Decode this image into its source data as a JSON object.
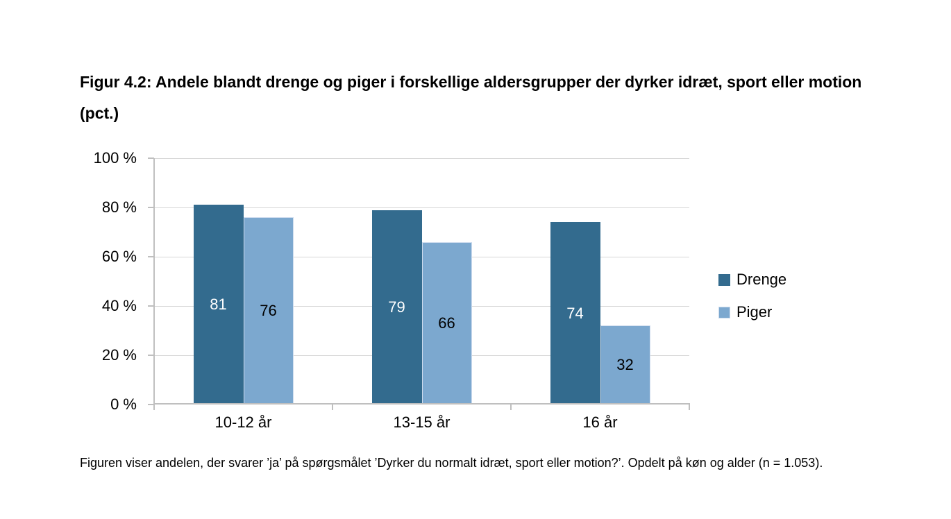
{
  "title": "Figur 4.2: Andele blandt drenge og piger i forskellige aldersgrupper der dyrker idræt, sport eller motion (pct.)",
  "footnote": "Figuren viser andelen, der svarer ’ja’ på spørgsmålet ’Dyrker du normalt idræt, sport eller motion?’. Opdelt på køn og alder (n = 1.053).",
  "colors": {
    "drenge": "#336B8E",
    "piger": "#7CA8CF",
    "piger_border": "#CEDCEE",
    "gridline": "#D6D6D6",
    "axis": "#BFBFBF",
    "text": "#000000"
  },
  "chart_data": {
    "type": "bar",
    "categories": [
      "10-12 år",
      "13-15 år",
      "16 år"
    ],
    "series": [
      {
        "name": "Drenge",
        "values": [
          81,
          79,
          74
        ],
        "color": "#336B8E",
        "label_color": "#FFFFFF"
      },
      {
        "name": "Piger",
        "values": [
          76,
          66,
          32
        ],
        "color": "#7CA8CF",
        "label_color": "#000000",
        "border_color": "#CEDCEE"
      }
    ],
    "title": "Figur 4.2: Andele blandt drenge og piger i forskellige aldersgrupper der dyrker idræt, sport eller motion (pct.)",
    "xlabel": "",
    "ylabel": "",
    "ylim": [
      0,
      100
    ],
    "y_ticks": [
      "0 %",
      "20 %",
      "40 %",
      "60 %",
      "80 %",
      "100 %"
    ],
    "grid": true,
    "legend_position": "right",
    "data_labels": "inside-center"
  }
}
